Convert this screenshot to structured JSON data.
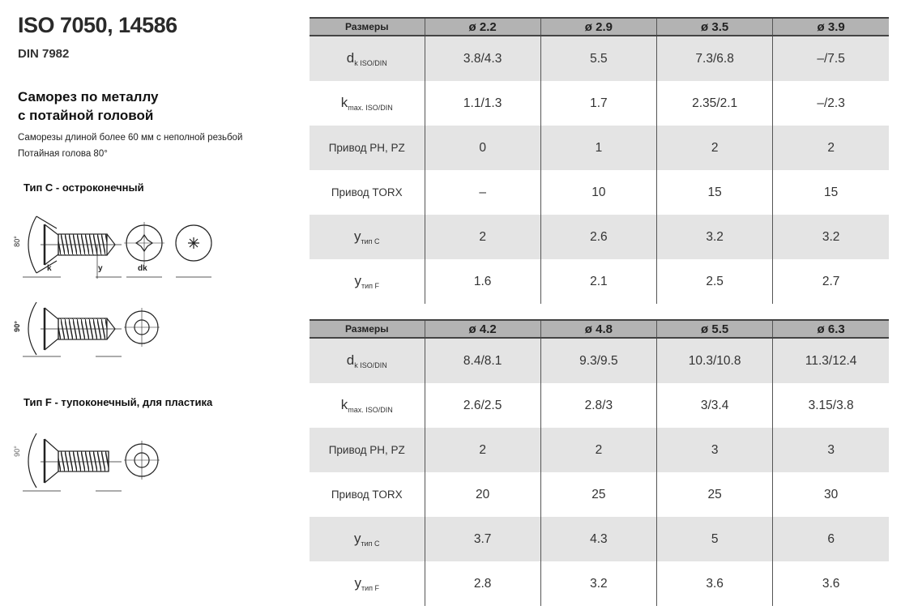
{
  "header": {
    "title": "ISO 7050, 14586",
    "subtitle": "DIN 7982",
    "heading_line1": "Саморез по металлу",
    "heading_line2": "с потайной головой",
    "note1": "Саморезы длиной более 60 мм с неполной резьбой",
    "note2": "Потайная голова 80°"
  },
  "types": {
    "type_c": "Тип C - остроконечный",
    "type_f": "Тип F - тупоконечный, для пластика"
  },
  "drawing_labels": {
    "k": "k",
    "y": "y",
    "dk": "dk",
    "angle80": "80°",
    "angle90": "90°"
  },
  "tables": [
    {
      "header_label": "Размеры",
      "columns": [
        "ø 2.2",
        "ø 2.9",
        "ø 3.5",
        "ø 3.9"
      ],
      "rows": [
        {
          "label": "d",
          "sub": "k ISO/DIN",
          "values": [
            "3.8/4.3",
            "5.5",
            "7.3/6.8",
            "–/7.5"
          ]
        },
        {
          "label": "k",
          "sub": "max. ISO/DIN",
          "values": [
            "1.1/1.3",
            "1.7",
            "2.35/2.1",
            "–/2.3"
          ]
        },
        {
          "label": "Привод PH, PZ",
          "sub": "",
          "values": [
            "0",
            "1",
            "2",
            "2"
          ]
        },
        {
          "label": "Привод TORX",
          "sub": "",
          "values": [
            "–",
            "10",
            "15",
            "15"
          ]
        },
        {
          "label": "y",
          "sub": "тип C",
          "values": [
            "2",
            "2.6",
            "3.2",
            "3.2"
          ]
        },
        {
          "label": "y",
          "sub": "тип F",
          "values": [
            "1.6",
            "2.1",
            "2.5",
            "2.7"
          ]
        }
      ]
    },
    {
      "header_label": "Размеры",
      "columns": [
        "ø 4.2",
        "ø 4.8",
        "ø 5.5",
        "ø 6.3"
      ],
      "rows": [
        {
          "label": "d",
          "sub": "k ISO/DIN",
          "values": [
            "8.4/8.1",
            "9.3/9.5",
            "10.3/10.8",
            "11.3/12.4"
          ]
        },
        {
          "label": "k",
          "sub": "max. ISO/DIN",
          "values": [
            "2.6/2.5",
            "2.8/3",
            "3/3.4",
            "3.15/3.8"
          ]
        },
        {
          "label": "Привод PH, PZ",
          "sub": "",
          "values": [
            "2",
            "2",
            "3",
            "3"
          ]
        },
        {
          "label": "Привод TORX",
          "sub": "",
          "values": [
            "20",
            "25",
            "25",
            "30"
          ]
        },
        {
          "label": "y",
          "sub": "тип C",
          "values": [
            "3.7",
            "4.3",
            "5",
            "6"
          ]
        },
        {
          "label": "y",
          "sub": "тип F",
          "values": [
            "2.8",
            "3.2",
            "3.6",
            "3.6"
          ]
        }
      ]
    }
  ]
}
